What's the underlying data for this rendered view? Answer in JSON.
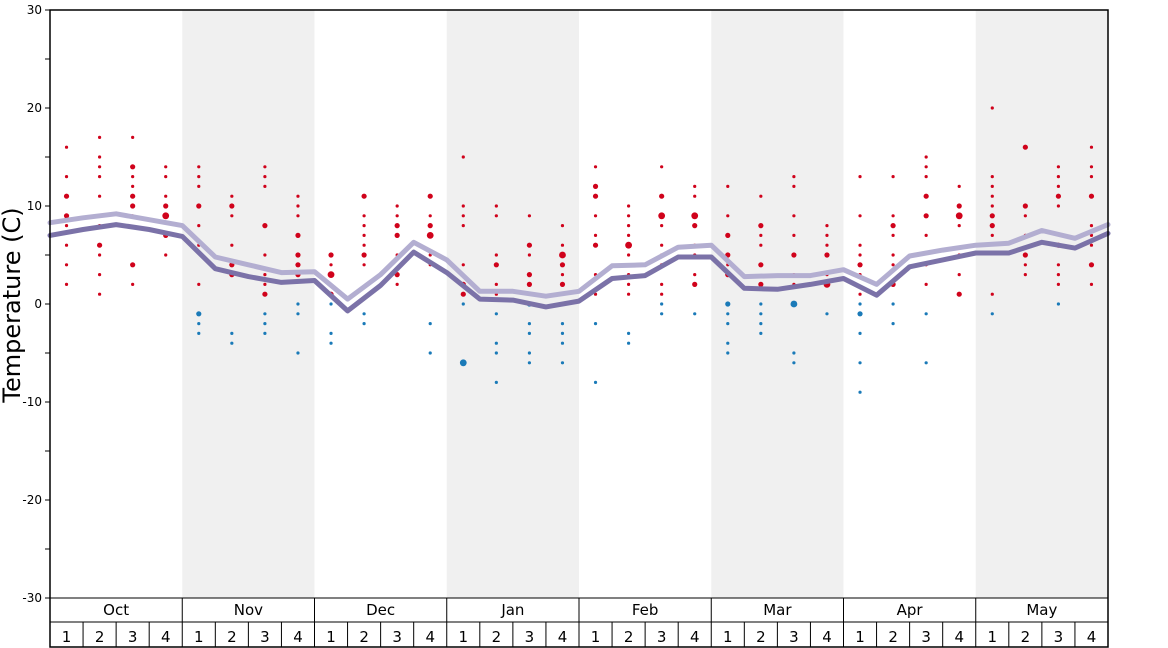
{
  "chart_data": {
    "type": "line",
    "title": "",
    "xlabel": "",
    "ylabel": "Temperature (C)",
    "ylim": [
      -30,
      30
    ],
    "yticks": [
      -30,
      -20,
      -10,
      0,
      10,
      20,
      30
    ],
    "grid": false,
    "months": [
      "Oct",
      "Nov",
      "Dec",
      "Jan",
      "Feb",
      "Mar",
      "Apr",
      "May"
    ],
    "weeks": [
      "1",
      "2",
      "3",
      "4"
    ],
    "colors": {
      "upper_line": "#b3aed1",
      "lower_line": "#7b72a8",
      "warm_dots": "#d0021b",
      "cold_dots": "#1a7ab8",
      "band": "#f0f0f0"
    },
    "series": [
      {
        "values": [
          8.3,
          8.8,
          9.2,
          8.6,
          8.0,
          4.8,
          4.0,
          3.2,
          3.3,
          0.5,
          3.0,
          6.3,
          4.5,
          1.3,
          1.3,
          0.8,
          1.3,
          3.9,
          4.0,
          5.8,
          6.0,
          2.8,
          2.9,
          2.9,
          3.5,
          2.0,
          4.9,
          5.5,
          6.0,
          6.2,
          7.5,
          6.7,
          8.1
        ]
      },
      {
        "values": [
          7.0,
          7.6,
          8.1,
          7.6,
          6.9,
          3.6,
          2.8,
          2.2,
          2.4,
          -0.7,
          1.9,
          5.3,
          3.2,
          0.5,
          0.4,
          -0.3,
          0.3,
          2.6,
          2.9,
          4.8,
          4.8,
          1.6,
          1.5,
          2.0,
          2.6,
          0.9,
          3.8,
          4.5,
          5.2,
          5.2,
          6.3,
          5.7,
          7.2
        ]
      }
    ],
    "point_columns": [
      {
        "w": 0,
        "v": [
          [
            16,
            1
          ],
          [
            13,
            1
          ],
          [
            11,
            2
          ],
          [
            9,
            2
          ],
          [
            8,
            1
          ],
          [
            6,
            1
          ],
          [
            4,
            1
          ],
          [
            2,
            1
          ]
        ]
      },
      {
        "w": 1,
        "v": [
          [
            17,
            1
          ],
          [
            15,
            1
          ],
          [
            14,
            1
          ],
          [
            13,
            1
          ],
          [
            11,
            1
          ],
          [
            9,
            1
          ],
          [
            8,
            1
          ],
          [
            6,
            2
          ],
          [
            5,
            1
          ],
          [
            3,
            1
          ],
          [
            1,
            1
          ]
        ]
      },
      {
        "w": 2,
        "v": [
          [
            17,
            1
          ],
          [
            14,
            2
          ],
          [
            13,
            1
          ],
          [
            12,
            1
          ],
          [
            11,
            2
          ],
          [
            10,
            2
          ],
          [
            9,
            1
          ],
          [
            4,
            2
          ],
          [
            2,
            1
          ]
        ]
      },
      {
        "w": 3,
        "v": [
          [
            14,
            1
          ],
          [
            13,
            1
          ],
          [
            11,
            1
          ],
          [
            10,
            2
          ],
          [
            9,
            3
          ],
          [
            7,
            2
          ],
          [
            5,
            1
          ]
        ]
      },
      {
        "w": 4,
        "v": [
          [
            14,
            1
          ],
          [
            13,
            1
          ],
          [
            12,
            1
          ],
          [
            10,
            2
          ],
          [
            8,
            1
          ],
          [
            6,
            1
          ],
          [
            2,
            1
          ],
          [
            -1,
            2
          ],
          [
            -2,
            1
          ],
          [
            -3,
            1
          ]
        ]
      },
      {
        "w": 5,
        "v": [
          [
            11,
            1
          ],
          [
            10,
            2
          ],
          [
            9,
            1
          ],
          [
            6,
            1
          ],
          [
            4,
            2
          ],
          [
            3,
            2
          ],
          [
            -3,
            1
          ],
          [
            -4,
            1
          ]
        ]
      },
      {
        "w": 6,
        "v": [
          [
            14,
            1
          ],
          [
            13,
            1
          ],
          [
            12,
            1
          ],
          [
            8,
            2
          ],
          [
            5,
            1
          ],
          [
            3,
            1
          ],
          [
            2,
            1
          ],
          [
            1,
            2
          ],
          [
            -1,
            1
          ],
          [
            -2,
            1
          ],
          [
            -3,
            1
          ]
        ]
      },
      {
        "w": 7,
        "v": [
          [
            11,
            1
          ],
          [
            10,
            1
          ],
          [
            9,
            1
          ],
          [
            7,
            2
          ],
          [
            5,
            2
          ],
          [
            4,
            2
          ],
          [
            3,
            2
          ],
          [
            0,
            1
          ],
          [
            -1,
            1
          ],
          [
            -5,
            1
          ]
        ]
      },
      {
        "w": 8,
        "v": [
          [
            5,
            2
          ],
          [
            4,
            1
          ],
          [
            3,
            3
          ],
          [
            1,
            2
          ],
          [
            0,
            1
          ],
          [
            -3,
            1
          ],
          [
            -4,
            1
          ]
        ]
      },
      {
        "w": 9,
        "v": [
          [
            11,
            2
          ],
          [
            9,
            1
          ],
          [
            8,
            1
          ],
          [
            7,
            1
          ],
          [
            6,
            1
          ],
          [
            5,
            2
          ],
          [
            4,
            1
          ],
          [
            -1,
            1
          ],
          [
            -2,
            1
          ]
        ]
      },
      {
        "w": 10,
        "v": [
          [
            10,
            1
          ],
          [
            9,
            1
          ],
          [
            8,
            2
          ],
          [
            7,
            2
          ],
          [
            5,
            1
          ],
          [
            3,
            2
          ],
          [
            2,
            1
          ]
        ]
      },
      {
        "w": 11,
        "v": [
          [
            11,
            2
          ],
          [
            9,
            1
          ],
          [
            8,
            2
          ],
          [
            7,
            3
          ],
          [
            5,
            1
          ],
          [
            4,
            1
          ],
          [
            -2,
            1
          ],
          [
            -5,
            1
          ]
        ]
      },
      {
        "w": 12,
        "v": [
          [
            15,
            1
          ],
          [
            10,
            1
          ],
          [
            9,
            1
          ],
          [
            8,
            1
          ],
          [
            4,
            1
          ],
          [
            2,
            2
          ],
          [
            1,
            2
          ],
          [
            0,
            1
          ],
          [
            -6,
            3
          ]
        ]
      },
      {
        "w": 13,
        "v": [
          [
            10,
            1
          ],
          [
            9,
            1
          ],
          [
            5,
            1
          ],
          [
            4,
            2
          ],
          [
            2,
            1
          ],
          [
            1,
            1
          ],
          [
            -1,
            1
          ],
          [
            -4,
            1
          ],
          [
            -5,
            1
          ],
          [
            -8,
            1
          ]
        ]
      },
      {
        "w": 14,
        "v": [
          [
            9,
            1
          ],
          [
            6,
            2
          ],
          [
            5,
            1
          ],
          [
            3,
            2
          ],
          [
            2,
            2
          ],
          [
            0,
            2
          ],
          [
            -2,
            1
          ],
          [
            -3,
            1
          ],
          [
            -5,
            1
          ],
          [
            -6,
            1
          ]
        ]
      },
      {
        "w": 15,
        "v": [
          [
            8,
            1
          ],
          [
            6,
            1
          ],
          [
            5,
            3
          ],
          [
            4,
            2
          ],
          [
            3,
            1
          ],
          [
            2,
            2
          ],
          [
            1,
            1
          ],
          [
            -2,
            1
          ],
          [
            -3,
            1
          ],
          [
            -4,
            1
          ],
          [
            -6,
            1
          ]
        ]
      },
      {
        "w": 16,
        "v": [
          [
            14,
            1
          ],
          [
            12,
            2
          ],
          [
            11,
            2
          ],
          [
            9,
            1
          ],
          [
            7,
            1
          ],
          [
            6,
            2
          ],
          [
            3,
            1
          ],
          [
            1,
            1
          ],
          [
            -2,
            1
          ],
          [
            -8,
            1
          ]
        ]
      },
      {
        "w": 17,
        "v": [
          [
            10,
            1
          ],
          [
            9,
            1
          ],
          [
            8,
            1
          ],
          [
            7,
            1
          ],
          [
            6,
            3
          ],
          [
            5,
            1
          ],
          [
            4,
            1
          ],
          [
            3,
            1
          ],
          [
            2,
            1
          ],
          [
            1,
            1
          ],
          [
            -3,
            1
          ],
          [
            -4,
            1
          ]
        ]
      },
      {
        "w": 18,
        "v": [
          [
            14,
            1
          ],
          [
            11,
            2
          ],
          [
            9,
            3
          ],
          [
            8,
            1
          ],
          [
            6,
            1
          ],
          [
            5,
            1
          ],
          [
            4,
            1
          ],
          [
            2,
            1
          ],
          [
            1,
            1
          ],
          [
            0,
            1
          ],
          [
            -1,
            1
          ]
        ]
      },
      {
        "w": 19,
        "v": [
          [
            12,
            1
          ],
          [
            11,
            1
          ],
          [
            9,
            3
          ],
          [
            8,
            2
          ],
          [
            6,
            1
          ],
          [
            5,
            1
          ],
          [
            3,
            1
          ],
          [
            2,
            2
          ],
          [
            -1,
            1
          ]
        ]
      },
      {
        "w": 20,
        "v": [
          [
            12,
            1
          ],
          [
            9,
            1
          ],
          [
            7,
            2
          ],
          [
            5,
            2
          ],
          [
            4,
            1
          ],
          [
            3,
            2
          ],
          [
            0,
            2
          ],
          [
            -1,
            1
          ],
          [
            -2,
            1
          ],
          [
            -4,
            1
          ],
          [
            -5,
            1
          ]
        ]
      },
      {
        "w": 21,
        "v": [
          [
            11,
            1
          ],
          [
            8,
            2
          ],
          [
            7,
            1
          ],
          [
            6,
            1
          ],
          [
            4,
            2
          ],
          [
            2,
            2
          ],
          [
            0,
            1
          ],
          [
            -1,
            1
          ],
          [
            -2,
            1
          ],
          [
            -3,
            1
          ]
        ]
      },
      {
        "w": 22,
        "v": [
          [
            13,
            1
          ],
          [
            12,
            1
          ],
          [
            9,
            1
          ],
          [
            7,
            1
          ],
          [
            5,
            2
          ],
          [
            3,
            1
          ],
          [
            2,
            1
          ],
          [
            0,
            3
          ],
          [
            -5,
            1
          ],
          [
            -6,
            1
          ]
        ]
      },
      {
        "w": 23,
        "v": [
          [
            8,
            1
          ],
          [
            7,
            1
          ],
          [
            6,
            1
          ],
          [
            5,
            2
          ],
          [
            3,
            1
          ],
          [
            2,
            3
          ],
          [
            -1,
            1
          ]
        ]
      },
      {
        "w": 24,
        "v": [
          [
            13,
            1
          ],
          [
            9,
            1
          ],
          [
            6,
            1
          ],
          [
            5,
            1
          ],
          [
            4,
            2
          ],
          [
            3,
            1
          ],
          [
            1,
            1
          ],
          [
            0,
            1
          ],
          [
            -1,
            2
          ],
          [
            -3,
            1
          ],
          [
            -6,
            1
          ],
          [
            -9,
            1
          ]
        ]
      },
      {
        "w": 25,
        "v": [
          [
            13,
            1
          ],
          [
            9,
            1
          ],
          [
            8,
            2
          ],
          [
            7,
            1
          ],
          [
            5,
            1
          ],
          [
            4,
            1
          ],
          [
            2,
            2
          ],
          [
            0,
            1
          ],
          [
            -2,
            1
          ]
        ]
      },
      {
        "w": 26,
        "v": [
          [
            15,
            1
          ],
          [
            14,
            1
          ],
          [
            13,
            1
          ],
          [
            11,
            2
          ],
          [
            9,
            2
          ],
          [
            7,
            1
          ],
          [
            4,
            1
          ],
          [
            2,
            1
          ],
          [
            -1,
            1
          ],
          [
            -6,
            1
          ]
        ]
      },
      {
        "w": 27,
        "v": [
          [
            12,
            1
          ],
          [
            10,
            2
          ],
          [
            9,
            3
          ],
          [
            8,
            1
          ],
          [
            5,
            1
          ],
          [
            3,
            1
          ],
          [
            1,
            2
          ]
        ]
      },
      {
        "w": 28,
        "v": [
          [
            20,
            1
          ],
          [
            13,
            1
          ],
          [
            12,
            1
          ],
          [
            11,
            1
          ],
          [
            10,
            1
          ],
          [
            9,
            2
          ],
          [
            8,
            2
          ],
          [
            7,
            1
          ],
          [
            1,
            1
          ],
          [
            -1,
            1
          ]
        ]
      },
      {
        "w": 29,
        "v": [
          [
            16,
            2
          ],
          [
            10,
            2
          ],
          [
            9,
            1
          ],
          [
            7,
            1
          ],
          [
            5,
            2
          ],
          [
            4,
            1
          ],
          [
            3,
            1
          ]
        ]
      },
      {
        "w": 30,
        "v": [
          [
            14,
            1
          ],
          [
            13,
            1
          ],
          [
            12,
            1
          ],
          [
            11,
            2
          ],
          [
            10,
            1
          ],
          [
            6,
            2
          ],
          [
            4,
            1
          ],
          [
            3,
            1
          ],
          [
            2,
            1
          ],
          [
            0,
            1
          ]
        ]
      },
      {
        "w": 31,
        "v": [
          [
            16,
            1
          ],
          [
            14,
            1
          ],
          [
            13,
            1
          ],
          [
            11,
            2
          ],
          [
            8,
            1
          ],
          [
            7,
            1
          ],
          [
            6,
            1
          ],
          [
            4,
            2
          ],
          [
            2,
            1
          ]
        ]
      }
    ]
  }
}
